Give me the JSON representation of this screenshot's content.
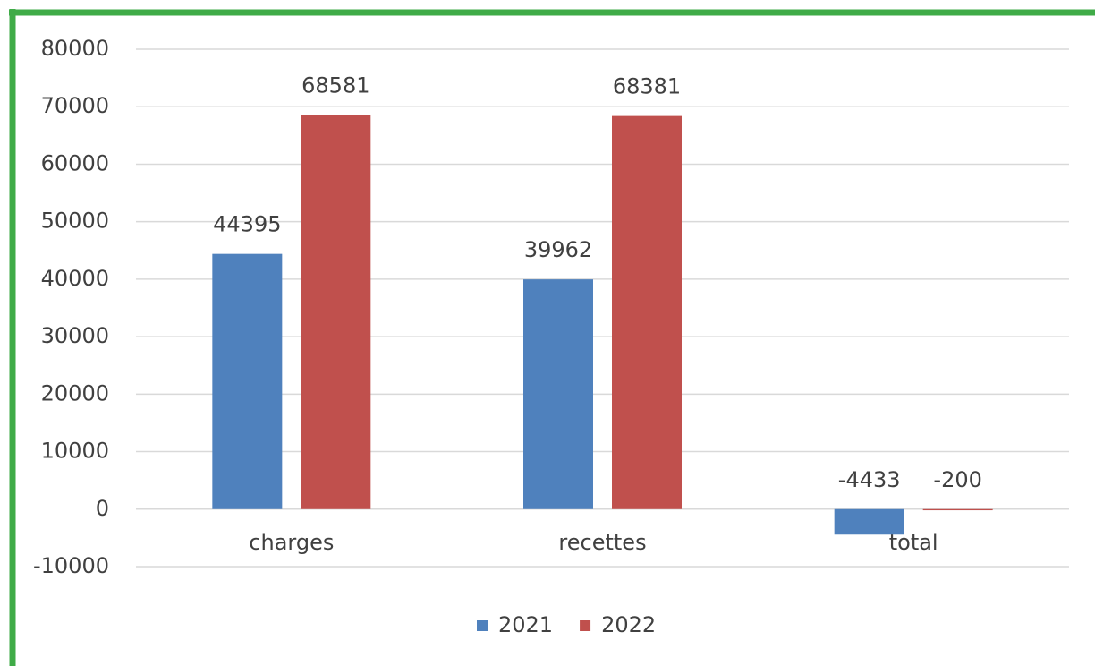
{
  "chart_data": {
    "type": "bar",
    "categories": [
      "charges",
      "recettes",
      "total"
    ],
    "series": [
      {
        "name": "2021",
        "color": "#4f81bd",
        "values": [
          44395,
          39962,
          -4433
        ]
      },
      {
        "name": "2022",
        "color": "#c0504d",
        "values": [
          68581,
          68381,
          -200
        ]
      }
    ],
    "ylim": [
      -10000,
      80000
    ],
    "yticks": [
      -10000,
      0,
      10000,
      20000,
      30000,
      40000,
      50000,
      60000,
      70000,
      80000
    ],
    "grid": true,
    "legend": "bottom"
  }
}
